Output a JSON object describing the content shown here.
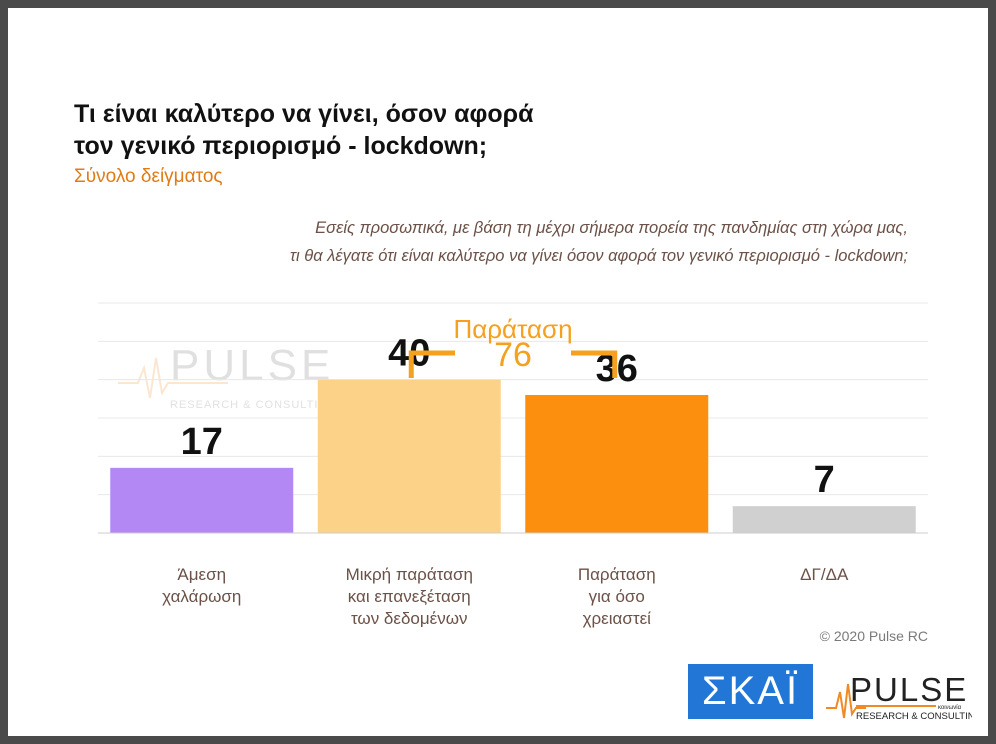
{
  "title_line1": "Τι είναι καλύτερο να γίνει, όσον αφορά",
  "title_line2": "τον γενικό περιορισμό - lockdown;",
  "subtitle": "Σύνολο δείγματος",
  "question_line1": "Εσείς προσωπικά, με βάση τη μέχρι σήμερα πορεία της πανδημίας στη χώρα μας,",
  "question_line2": "τι θα λέγατε ότι είναι καλύτερο να γίνει όσον αφορά τον γενικό περιορισμό - lockdown;",
  "bracket": {
    "label": "Παράταση",
    "value": 76,
    "color": "#f5a01e"
  },
  "copyright": "© 2020 Pulse RC",
  "logos": {
    "skai": "ΣΚΑΪ",
    "pulse_name": "PULSE",
    "pulse_small": "κοινωνία",
    "pulse_tagline": "RESEARCH & CONSULTING"
  },
  "chart_data": {
    "type": "bar",
    "categories": [
      [
        "Άμεση",
        "χαλάρωση"
      ],
      [
        "Μικρή παράταση",
        "και επανεξέταση",
        "των δεδομένων"
      ],
      [
        "Παράταση",
        "για όσο",
        "χρειαστεί"
      ],
      [
        "ΔΓ/ΔΑ"
      ]
    ],
    "values": [
      17,
      40,
      36,
      7
    ],
    "colors": [
      "#b388f5",
      "#fcd288",
      "#fd8f0e",
      "#d0d0d0"
    ],
    "ylim": [
      0,
      60
    ],
    "grid": true
  }
}
